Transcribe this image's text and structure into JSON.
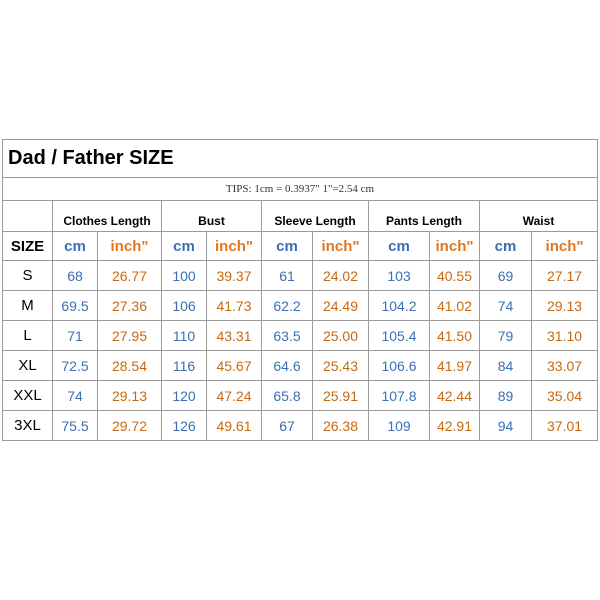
{
  "title": "Dad / Father  SIZE",
  "tips": "TIPS: 1cm = 0.3937\"    1\"=2.54 cm",
  "size_header": "SIZE",
  "unit_cm": "cm",
  "unit_inch": "inch\"",
  "groups": [
    {
      "label": "Clothes Length"
    },
    {
      "label": "Bust"
    },
    {
      "label": "Sleeve Length"
    },
    {
      "label": "Pants Length"
    },
    {
      "label": "Waist"
    }
  ],
  "rows": [
    {
      "size": "S",
      "values": [
        "68",
        "26.77",
        "100",
        "39.37",
        "61",
        "24.02",
        "103",
        "40.55",
        "69",
        "27.17"
      ]
    },
    {
      "size": "M",
      "values": [
        "69.5",
        "27.36",
        "106",
        "41.73",
        "62.2",
        "24.49",
        "104.2",
        "41.02",
        "74",
        "29.13"
      ]
    },
    {
      "size": "L",
      "values": [
        "71",
        "27.95",
        "110",
        "43.31",
        "63.5",
        "25.00",
        "105.4",
        "41.50",
        "79",
        "31.10"
      ]
    },
    {
      "size": "XL",
      "values": [
        "72.5",
        "28.54",
        "116",
        "45.67",
        "64.6",
        "25.43",
        "106.6",
        "41.97",
        "84",
        "33.07"
      ]
    },
    {
      "size": "XXL",
      "values": [
        "74",
        "29.13",
        "120",
        "47.24",
        "65.8",
        "25.91",
        "107.8",
        "42.44",
        "89",
        "35.04"
      ]
    },
    {
      "size": "3XL",
      "values": [
        "75.5",
        "29.72",
        "126",
        "49.61",
        "67",
        "26.38",
        "109",
        "42.91",
        "94",
        "37.01"
      ]
    }
  ]
}
